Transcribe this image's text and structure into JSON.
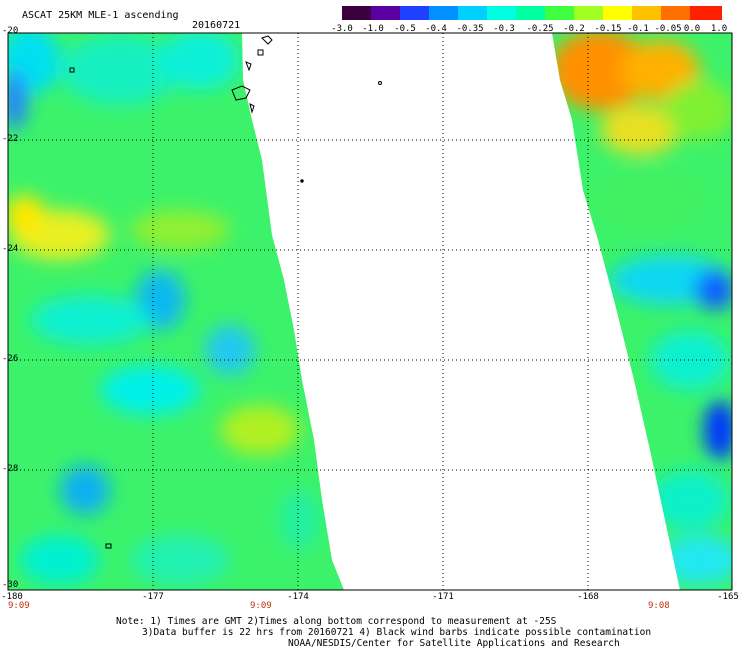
{
  "header": {
    "product": "ASCAT 25KM MLE-1 ascending",
    "date": "20160721"
  },
  "colorbar": {
    "labels": [
      "-3.0",
      "-1.0",
      "-0.5",
      "-0.4",
      "-0.35",
      "-0.3",
      "-0.25",
      "-0.2",
      "-0.15",
      "-0.1",
      "-0.05",
      "0.0",
      "1.0"
    ],
    "colors": [
      "#3a0040",
      "#5a00a0",
      "#2040ff",
      "#0090ff",
      "#00d0ff",
      "#00ffe0",
      "#00ffa0",
      "#40ff40",
      "#a0ff20",
      "#ffff00",
      "#ffc000",
      "#ff7000",
      "#ff2000"
    ]
  },
  "axes": {
    "lat_labels": [
      "-20",
      "-22",
      "-24",
      "-26",
      "-28",
      "-30"
    ],
    "lon_labels": [
      "-180",
      "-177",
      "-174",
      "-171",
      "-168",
      "-165"
    ]
  },
  "pass_times": [
    "9:09",
    "9:09",
    "9:08"
  ],
  "notes": {
    "line1": "Note: 1) Times are GMT 2)Times along bottom correspond to measurement at -25S",
    "line2": "3)Data buffer is 22 hrs from 20160721 4) Black wind barbs indicate possible contamination",
    "line3": "NOAA/NESDIS/Center for Satellite Applications and Research"
  }
}
